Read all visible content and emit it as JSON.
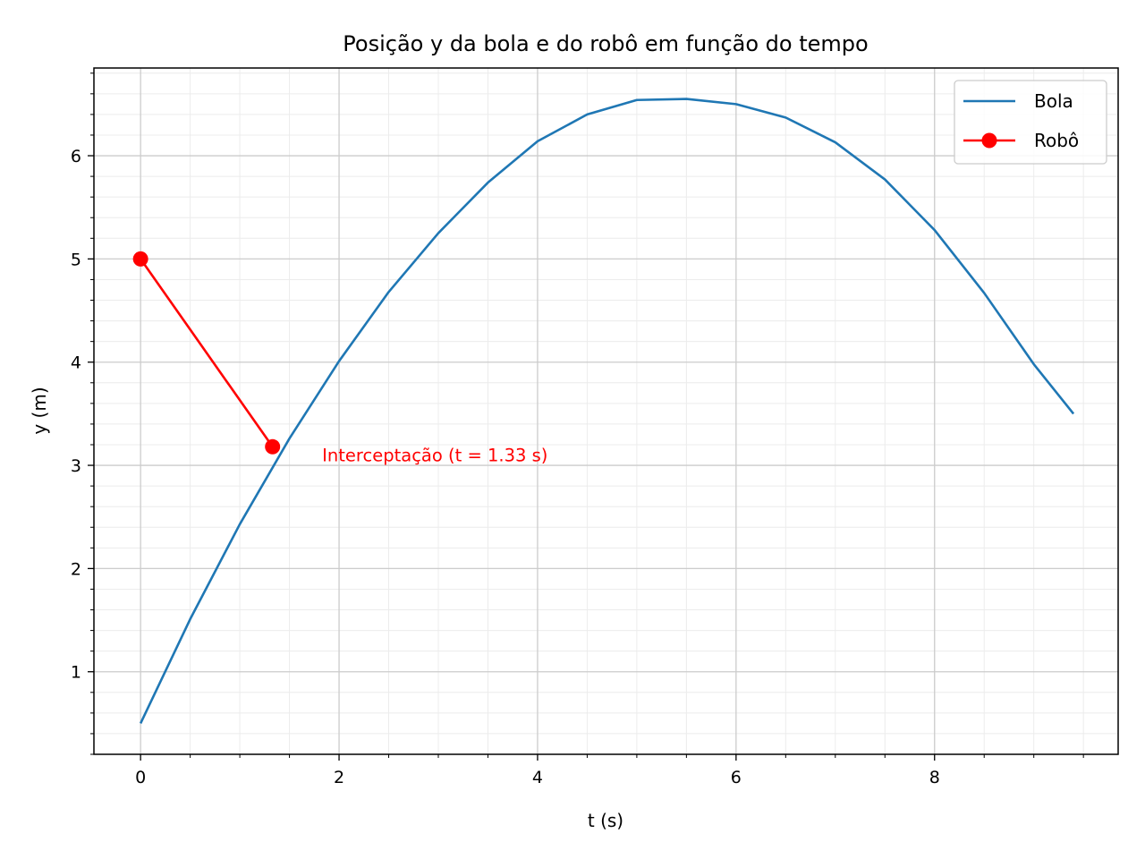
{
  "chart_data": {
    "type": "line",
    "title": "Posição y da bola e do robô em função do tempo",
    "xlabel": "t (s)",
    "ylabel": "y (m)",
    "xlim": [
      -0.47,
      9.85
    ],
    "ylim": [
      0.2,
      6.85
    ],
    "xticks": [
      0,
      2,
      4,
      6,
      8
    ],
    "xtick_labels": [
      "0",
      "2",
      "4",
      "6",
      "8"
    ],
    "yticks": [
      1,
      2,
      3,
      4,
      5,
      6
    ],
    "ytick_labels": [
      "1",
      "2",
      "3",
      "4",
      "5",
      "6"
    ],
    "x_minor_step": 0.5,
    "y_minor_step": 0.2,
    "grid": true,
    "minor_grid": true,
    "legend_position": "top-right",
    "series": [
      {
        "name": "Bola",
        "color": "#1f77b4",
        "marker": "none",
        "x": [
          0,
          0.5,
          1,
          1.5,
          2,
          2.5,
          3,
          3.5,
          4,
          4.5,
          5,
          5.5,
          6,
          6.5,
          7,
          7.5,
          8,
          8.5,
          9,
          9.4
        ],
        "y": [
          0.5,
          1.51,
          2.43,
          3.26,
          4.01,
          4.68,
          5.25,
          5.74,
          6.14,
          6.4,
          6.54,
          6.55,
          6.5,
          6.37,
          6.13,
          5.77,
          5.28,
          4.67,
          3.98,
          3.5
        ]
      },
      {
        "name": "Robô",
        "color": "#ff0000",
        "marker": "circle",
        "x": [
          0,
          1.33
        ],
        "y": [
          5.0,
          3.18
        ]
      }
    ],
    "annotations": [
      {
        "text": "Interceptação (t = 1.33 s)",
        "x": 1.83,
        "y": 3.1,
        "color": "#ff0000"
      }
    ]
  }
}
